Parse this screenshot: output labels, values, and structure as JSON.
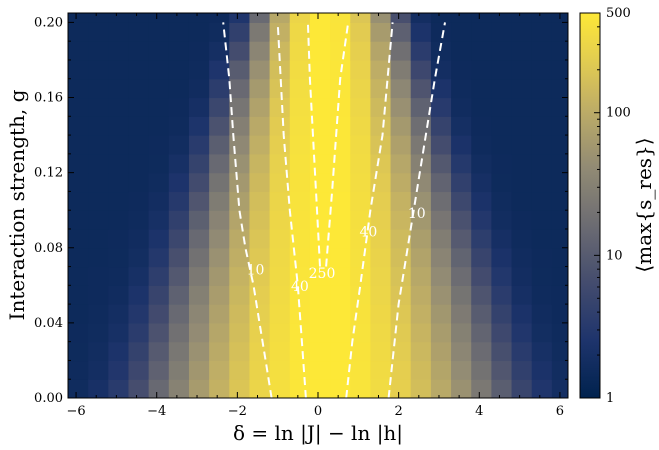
{
  "chart_data": {
    "type": "heatmap",
    "xlabel": "δ = ln |J| − ln |h|",
    "ylabel": "Interaction strength, g",
    "colorbar_label": "⟨max{s_res}⟩",
    "xlim": [
      -6.2,
      6.2
    ],
    "ylim": [
      0,
      0.205
    ],
    "x_ticks": [
      -6,
      -4,
      -2,
      0,
      2,
      4,
      6
    ],
    "x_tick_labels": [
      "−6",
      "−4",
      "−2",
      "0",
      "2",
      "4",
      "6"
    ],
    "y_ticks": [
      0,
      0.04,
      0.08,
      0.12,
      0.16,
      0.2
    ],
    "y_tick_labels": [
      "0.00",
      "0.04",
      "0.08",
      "0.12",
      "0.16",
      "0.20"
    ],
    "color_scale": "log",
    "colormap": "cividis",
    "colorbar_range": [
      1,
      500
    ],
    "colorbar_ticks": [
      1,
      10,
      100,
      500
    ],
    "colorbar_tick_labels": [
      "1",
      "10",
      "100",
      "500"
    ],
    "grid_x_step": 0.5,
    "grid_y_step": 0.01,
    "value_model": "peak near δ≈0.2; width narrows as g increases",
    "contours": [
      {
        "level": 10,
        "label": "10",
        "side": "left",
        "points": [
          [
            -1.15,
            0.0
          ],
          [
            -1.3,
            0.02
          ],
          [
            -1.45,
            0.04
          ],
          [
            -1.6,
            0.06
          ],
          [
            -1.8,
            0.08
          ],
          [
            -1.95,
            0.1
          ],
          [
            -2.1,
            0.14
          ],
          [
            -2.2,
            0.17
          ],
          [
            -2.35,
            0.2
          ]
        ]
      },
      {
        "level": 40,
        "label": "40",
        "side": "left",
        "points": [
          [
            -0.3,
            0.0
          ],
          [
            -0.4,
            0.03
          ],
          [
            -0.5,
            0.06
          ],
          [
            -0.7,
            0.1
          ],
          [
            -0.85,
            0.14
          ],
          [
            -1.0,
            0.2
          ]
        ]
      },
      {
        "level": 250,
        "label": "250",
        "side": "left",
        "points": [
          [
            0.05,
            0.07
          ],
          [
            -0.05,
            0.11
          ],
          [
            -0.2,
            0.17
          ],
          [
            -0.25,
            0.2
          ]
        ]
      },
      {
        "level": 250,
        "label": "",
        "side": "right",
        "points": [
          [
            0.2,
            0.07
          ],
          [
            0.35,
            0.11
          ],
          [
            0.55,
            0.17
          ],
          [
            0.75,
            0.2
          ]
        ]
      },
      {
        "level": 40,
        "label": "40",
        "side": "right",
        "points": [
          [
            0.7,
            0.0
          ],
          [
            0.85,
            0.03
          ],
          [
            1.05,
            0.06
          ],
          [
            1.3,
            0.1
          ],
          [
            1.6,
            0.14
          ],
          [
            1.85,
            0.2
          ]
        ]
      },
      {
        "level": 10,
        "label": "10",
        "side": "right",
        "points": [
          [
            1.75,
            0.0
          ],
          [
            1.85,
            0.02
          ],
          [
            2.0,
            0.05
          ],
          [
            2.3,
            0.09
          ],
          [
            2.6,
            0.13
          ],
          [
            2.9,
            0.17
          ],
          [
            3.15,
            0.2
          ]
        ]
      }
    ],
    "contour_labels": [
      {
        "text": "10",
        "x": -1.55,
        "y": 0.068
      },
      {
        "text": "40",
        "x": -0.45,
        "y": 0.059
      },
      {
        "text": "250",
        "x": 0.1,
        "y": 0.066
      },
      {
        "text": "40",
        "x": 1.25,
        "y": 0.088
      },
      {
        "text": "10",
        "x": 2.45,
        "y": 0.098
      }
    ],
    "legend": "colorbar right"
  }
}
